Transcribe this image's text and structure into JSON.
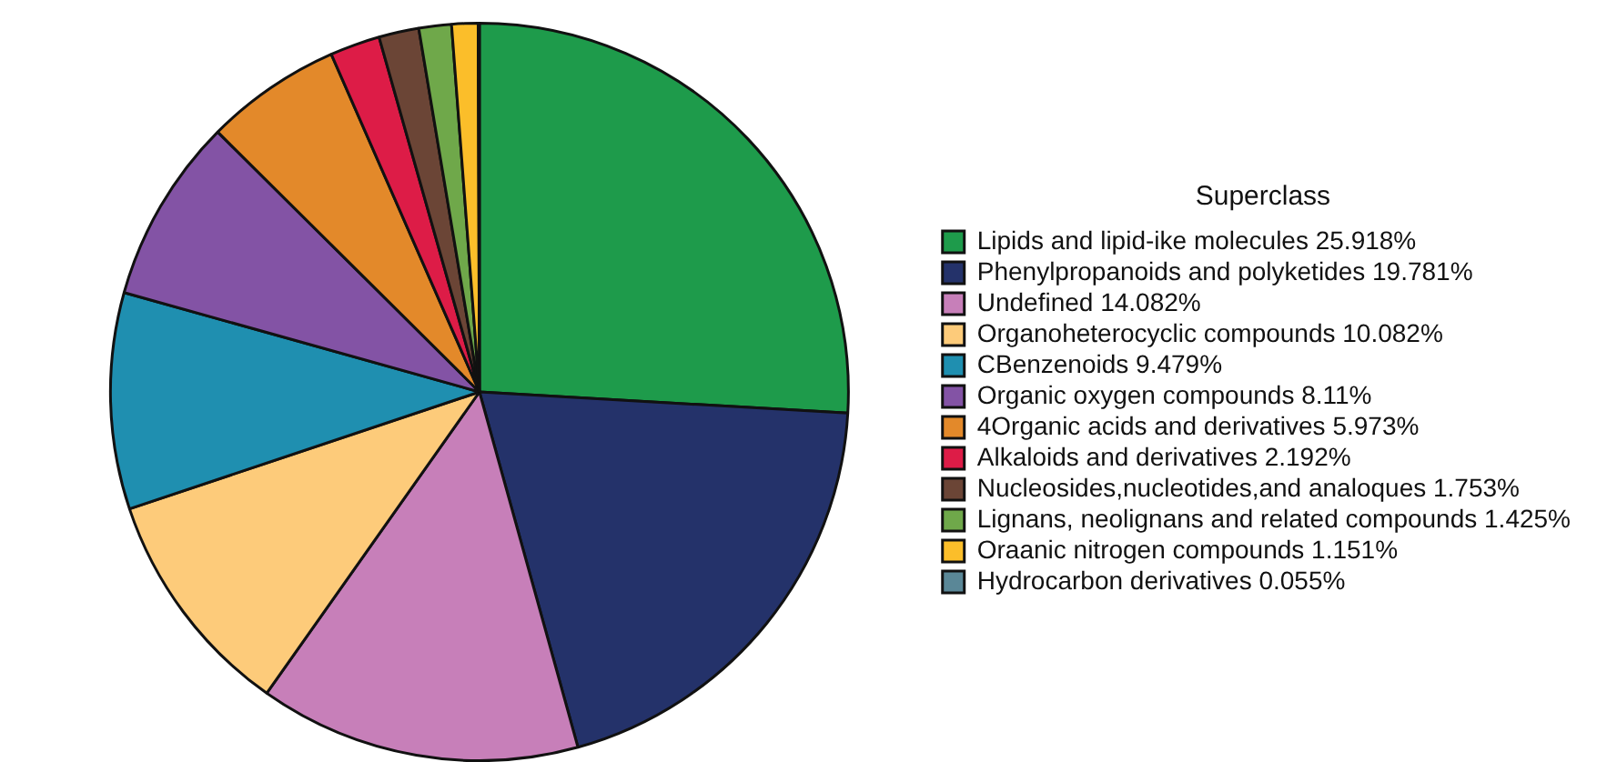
{
  "chart_data": {
    "type": "pie",
    "legend_title": "Superclass",
    "legend": "right",
    "categories": [
      "Lipids and lipid-ike molecules 25.918%",
      "Phenylpropanoids and polyketides 19.781%",
      "Undefined 14.082%",
      "Organoheterocyclic compounds 10.082%",
      "CBenzenoids 9.479%",
      "Organic oxygen compounds 8.11%",
      "4Organic acids and derivatives 5.973%",
      "Alkaloids and derivatives 2.192%",
      "Nucleosides,nucleotides,and analoques 1.753%",
      "Lignans, neolignans and related compounds 1.425%",
      "Oraanic nitrogen compounds 1.151%",
      "Hydrocarbon derivatives 0.055%"
    ],
    "values": [
      25.918,
      19.781,
      14.082,
      10.082,
      9.479,
      8.11,
      5.973,
      2.192,
      1.753,
      1.425,
      1.151,
      0.055
    ],
    "colors": [
      "#1e9b4b",
      "#24326a",
      "#c77fb9",
      "#fdcb7a",
      "#1f8fb0",
      "#8353a5",
      "#e3892a",
      "#dd1c47",
      "#6b4536",
      "#6fa84a",
      "#fbbe2a",
      "#5a8797"
    ]
  }
}
